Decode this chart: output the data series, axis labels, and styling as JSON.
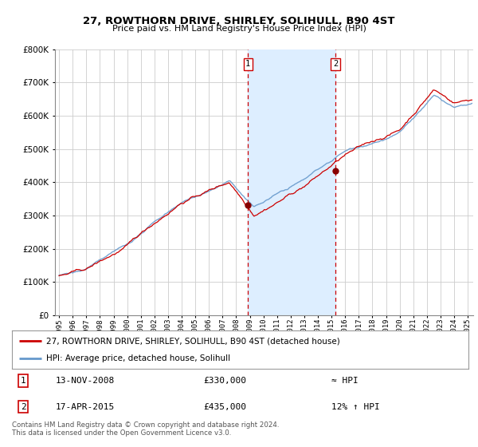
{
  "title": "27, ROWTHORN DRIVE, SHIRLEY, SOLIHULL, B90 4ST",
  "subtitle": "Price paid vs. HM Land Registry's House Price Index (HPI)",
  "legend_line1": "27, ROWTHORN DRIVE, SHIRLEY, SOLIHULL, B90 4ST (detached house)",
  "legend_line2": "HPI: Average price, detached house, Solihull",
  "annotation1_label": "1",
  "annotation1_date": "13-NOV-2008",
  "annotation1_price": "£330,000",
  "annotation1_hpi": "≈ HPI",
  "annotation2_label": "2",
  "annotation2_date": "17-APR-2015",
  "annotation2_price": "£435,000",
  "annotation2_hpi": "12% ↑ HPI",
  "footer": "Contains HM Land Registry data © Crown copyright and database right 2024.\nThis data is licensed under the Open Government Licence v3.0.",
  "sale1_year": 2008.87,
  "sale1_price": 330000,
  "sale2_year": 2015.29,
  "sale2_price": 435000,
  "hpi_color": "#6699cc",
  "price_color": "#cc0000",
  "sale_dot_color": "#880000",
  "shade_color": "#ddeeff",
  "dashed_color": "#cc0000",
  "grid_color": "#cccccc",
  "background_color": "#ffffff",
  "plot_bg_color": "#ffffff",
  "ylim": [
    0,
    800000
  ],
  "xlim_start": 1994.7,
  "xlim_end": 2025.4,
  "hpi_start_year": 1995.0,
  "seed": 42
}
